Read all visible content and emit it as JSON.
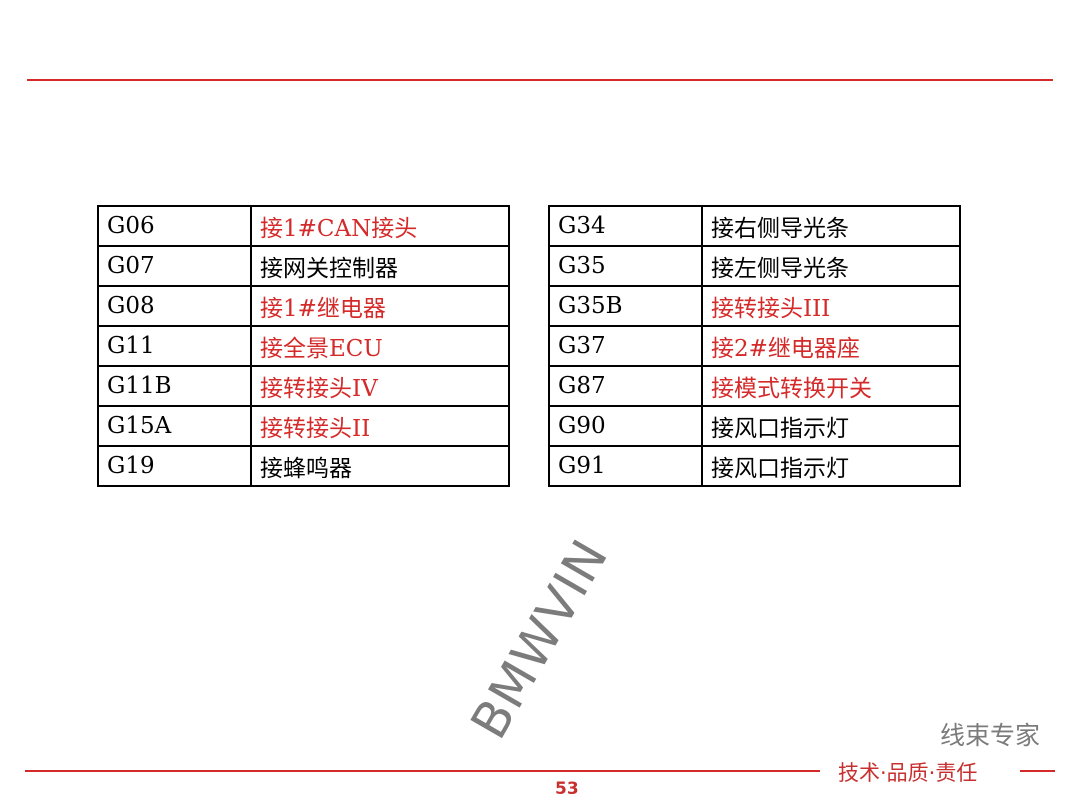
{
  "left_table": [
    {
      "code": "G06",
      "desc": "接1#CAN接头",
      "red": true
    },
    {
      "code": "G07",
      "desc": "接网关控制器",
      "red": false
    },
    {
      "code": "G08",
      "desc": "接1#继电器",
      "red": true
    },
    {
      "code": "G11",
      "desc": "接全景ECU",
      "red": true
    },
    {
      "code": "G11B",
      "desc": "接转接头IV",
      "red": true
    },
    {
      "code": "G15A",
      "desc": "接转接头II",
      "red": true
    },
    {
      "code": "G19",
      "desc": "接蜂鸣器",
      "red": false
    }
  ],
  "right_table": [
    {
      "code": "G34",
      "desc": "接右侧导光条",
      "red": false
    },
    {
      "code": "G35",
      "desc": "接左侧导光条",
      "red": false
    },
    {
      "code": "G35B",
      "desc": "接转接头III",
      "red": true
    },
    {
      "code": "G37",
      "desc": "接2#继电器座",
      "red": true
    },
    {
      "code": "G87",
      "desc": "接模式转换开关",
      "red": true
    },
    {
      "code": "G90",
      "desc": "接风口指示灯",
      "red": false
    },
    {
      "code": "G91",
      "desc": "接风口指示灯",
      "red": false
    }
  ],
  "watermark": "BMWVIN",
  "footer_slogan": "技术·品质·责任",
  "footer_watermark": "线束专家",
  "page_number": "53",
  "colors": {
    "accent": "#d42a2a"
  }
}
